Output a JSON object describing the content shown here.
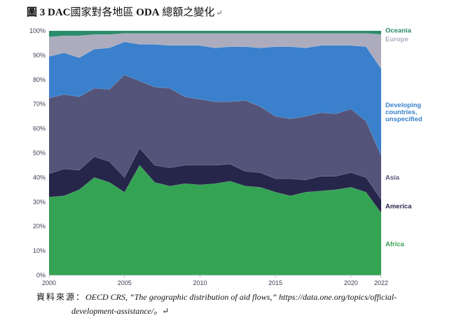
{
  "title": {
    "figure_no": "圖 3",
    "text_bold": "DAC",
    "text_cjk": "國家對各地區",
    "text_bold2": "ODA",
    "text_cjk2": "總額之變化",
    "mark": "↵"
  },
  "source": {
    "lead": "資料來源：",
    "line1": "OECD CRS, “The geographic distribution of aid flows,” https://data.one.org/topics/official-",
    "line2": "development-assistance/。↵"
  },
  "chart_data": {
    "type": "area",
    "stacked": true,
    "percent": true,
    "x": [
      2000,
      2001,
      2002,
      2003,
      2004,
      2005,
      2006,
      2007,
      2008,
      2009,
      2010,
      2011,
      2012,
      2013,
      2014,
      2015,
      2016,
      2017,
      2018,
      2019,
      2020,
      2021,
      2022
    ],
    "xticks": [
      "2000",
      "2005",
      "2010",
      "2015",
      "2020",
      "2022"
    ],
    "yticks": [
      "0%",
      "10%",
      "20%",
      "30%",
      "40%",
      "50%",
      "60%",
      "70%",
      "80%",
      "90%",
      "100%"
    ],
    "ylim": [
      0,
      100
    ],
    "colors": {
      "Africa": "#34a454",
      "America": "#26264a",
      "Asia": "#54547a",
      "Developing countries, unspecified": "#3a80cc",
      "Europe": "#acacbe",
      "Oceania": "#2a8c6a"
    },
    "series": [
      {
        "name": "Africa",
        "label_lines": [
          "Africa"
        ],
        "cumulative": [
          32,
          32.5,
          35,
          40,
          38,
          34,
          45,
          38,
          36.5,
          37.5,
          37,
          37.5,
          38.5,
          36.5,
          36,
          34,
          32.5,
          34,
          34.5,
          35,
          36,
          34,
          25.5
        ]
      },
      {
        "name": "America",
        "label_lines": [
          "America"
        ],
        "cumulative": [
          41.5,
          43.5,
          43,
          48.5,
          46.5,
          40,
          52,
          45,
          44,
          45,
          45,
          45,
          45.5,
          42.5,
          42,
          39.5,
          39.5,
          39,
          40.5,
          40.5,
          42,
          40,
          31
        ]
      },
      {
        "name": "Asia",
        "label_lines": [
          "Asia"
        ],
        "cumulative": [
          72.5,
          74,
          73,
          76.5,
          76,
          82,
          79.5,
          77,
          76.5,
          73,
          72,
          71,
          71,
          71.5,
          69,
          65,
          64,
          65,
          66.5,
          66,
          68,
          63,
          49
        ]
      },
      {
        "name": "Developing countries, unspecified",
        "label_lines": [
          "Developing",
          "countries,",
          "unspecified"
        ],
        "cumulative": [
          89.5,
          91,
          89,
          92.5,
          93,
          95.5,
          94.5,
          94.5,
          94,
          94,
          94,
          93,
          93.5,
          93.5,
          93,
          93.5,
          93.5,
          93,
          94,
          94,
          94,
          93.5,
          84.5
        ]
      },
      {
        "name": "Europe",
        "label_lines": [
          "Europe"
        ],
        "cumulative": [
          97.5,
          98,
          98,
          98.5,
          98.5,
          99,
          99,
          99,
          99,
          99,
          99,
          99,
          99,
          99,
          99,
          99,
          99,
          99,
          99,
          99,
          99,
          99,
          98.5
        ]
      },
      {
        "name": "Oceania",
        "label_lines": [
          "Oceania"
        ],
        "cumulative": [
          100,
          100,
          100,
          100,
          100,
          100,
          100,
          100,
          100,
          100,
          100,
          100,
          100,
          100,
          100,
          100,
          100,
          100,
          100,
          100,
          100,
          100,
          100
        ]
      }
    ]
  }
}
